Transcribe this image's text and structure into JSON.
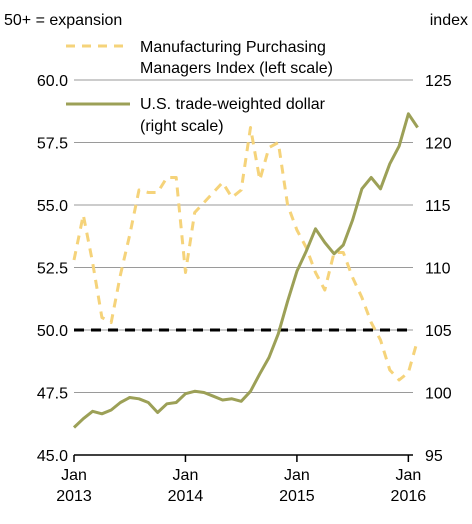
{
  "chart_data": {
    "type": "line",
    "left_axis_title": "50+ = expansion",
    "right_axis_title": "index",
    "left_ticks": [
      "60.0",
      "57.5",
      "55.0",
      "52.5",
      "50.0",
      "47.5",
      "45.0"
    ],
    "left_tick_values": [
      60,
      57.5,
      55,
      52.5,
      50,
      47.5,
      45
    ],
    "ylim_left": [
      45,
      60
    ],
    "right_ticks": [
      "125",
      "120",
      "115",
      "110",
      "105",
      "100",
      "95"
    ],
    "right_tick_values": [
      125,
      120,
      115,
      110,
      105,
      100,
      95
    ],
    "ylim_right": [
      95,
      125
    ],
    "x_ticks": [
      {
        "month": "Jan",
        "year": "2013",
        "x": 0
      },
      {
        "month": "Jan",
        "year": "2014",
        "x": 12
      },
      {
        "month": "Jan",
        "year": "2015",
        "x": 24
      },
      {
        "month": "Jan",
        "year": "2016",
        "x": 36
      }
    ],
    "xlim": [
      0,
      36.5
    ],
    "grid": "horizontal",
    "reference_line": {
      "value": 50,
      "axis": "left",
      "style": "dashed",
      "color": "#000000"
    },
    "series": [
      {
        "name": "Manufacturing Purchasing Managers Index (left scale)",
        "legend_lines": [
          "Manufacturing Purchasing",
          "Managers Index (left scale)"
        ],
        "axis": "left",
        "style": "dashed",
        "color": "#F5D37A",
        "x": [
          0,
          1,
          2,
          3,
          4,
          5,
          6,
          7,
          8,
          9,
          10,
          11,
          12,
          13,
          14,
          15,
          16,
          17,
          18,
          19,
          20,
          21,
          22,
          23,
          24,
          25,
          26,
          27,
          28,
          29,
          30,
          31,
          32,
          33,
          34,
          35,
          36,
          37
        ],
        "values": [
          52.8,
          54.6,
          52.7,
          50.5,
          50.3,
          52.2,
          53.8,
          55.6,
          55.5,
          55.5,
          56.1,
          56.1,
          52.3,
          54.7,
          55.1,
          55.5,
          55.9,
          55.3,
          55.6,
          58.1,
          56.0,
          57.3,
          57.5,
          55.0,
          54.0,
          53.3,
          52.3,
          51.6,
          53.1,
          53.1,
          52.1,
          51.3,
          50.3,
          49.6,
          48.4,
          48.0,
          48.3,
          49.6
        ]
      },
      {
        "name": "U.S. trade-weighted dollar (right scale)",
        "legend_lines": [
          "U.S. trade-weighted dollar",
          "(right scale)"
        ],
        "axis": "right",
        "style": "solid",
        "color": "#9CA057",
        "x": [
          0,
          1,
          2,
          3,
          4,
          5,
          6,
          7,
          8,
          9,
          10,
          11,
          12,
          13,
          14,
          15,
          16,
          17,
          18,
          19,
          20,
          21,
          22,
          23,
          24,
          25,
          26,
          27,
          28,
          29,
          30,
          31,
          32,
          33,
          34,
          35,
          36,
          37
        ],
        "values": [
          97.2,
          97.9,
          98.5,
          98.3,
          98.6,
          99.2,
          99.6,
          99.5,
          99.2,
          98.4,
          99.1,
          99.2,
          99.9,
          100.1,
          100.0,
          99.7,
          99.4,
          99.5,
          99.3,
          100.1,
          101.5,
          102.8,
          104.7,
          107.3,
          109.7,
          111.3,
          113.1,
          112.0,
          111.1,
          111.8,
          113.8,
          116.3,
          117.2,
          116.3,
          118.3,
          119.7,
          122.3,
          121.2
        ]
      }
    ]
  }
}
